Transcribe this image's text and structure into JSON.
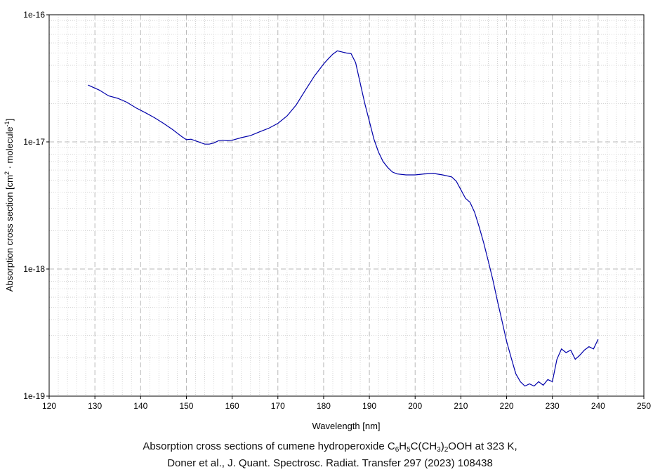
{
  "chart_data": {
    "type": "line",
    "xlabel": "Wavelength [nm]",
    "ylabel": "Absorption cross section [cm2 · molecule-1]",
    "ylabel_parts": {
      "main": "Absorption cross section [cm",
      "sup1": "2",
      "mid": " · molecule",
      "sup2": "-1",
      "end": "]"
    },
    "xlim": [
      120,
      250
    ],
    "ylim": [
      1e-19,
      1e-16
    ],
    "yscale": "log",
    "grid": true,
    "x_ticks": [
      "120",
      "130",
      "140",
      "150",
      "160",
      "170",
      "180",
      "190",
      "200",
      "210",
      "220",
      "230",
      "240",
      "250"
    ],
    "y_ticks": [
      "1e-19",
      "1e-18",
      "1e-17",
      "1e-16"
    ],
    "line_color": "#0000aa",
    "series": [
      {
        "x": [
          128.5,
          131,
          133,
          135,
          137,
          139,
          141,
          143,
          145,
          147,
          149,
          150,
          151,
          152,
          153,
          154,
          155,
          156,
          157,
          158,
          159,
          160,
          162,
          164,
          166,
          168,
          170,
          172,
          174,
          176,
          178,
          180,
          181,
          182,
          183,
          184,
          185,
          186,
          187,
          188,
          189,
          190,
          191,
          192,
          193,
          194,
          195,
          196,
          198,
          200,
          202,
          204,
          206,
          208,
          209,
          210,
          211,
          212,
          213,
          214,
          215,
          216,
          217,
          218,
          219,
          220,
          221,
          222,
          223,
          224,
          225,
          226,
          227,
          228,
          229,
          230,
          231,
          232,
          233,
          234,
          235,
          236,
          237,
          238,
          239,
          240
        ],
        "y": [
          2.8e-17,
          2.55e-17,
          2.3e-17,
          2.2e-17,
          2.05e-17,
          1.85e-17,
          1.7e-17,
          1.55e-17,
          1.4e-17,
          1.25e-17,
          1.1e-17,
          1.04e-17,
          1.05e-17,
          1.02e-17,
          9.9e-18,
          9.6e-18,
          9.6e-18,
          9.8e-18,
          1.02e-17,
          1.03e-17,
          1.02e-17,
          1.03e-17,
          1.08e-17,
          1.12e-17,
          1.2e-17,
          1.28e-17,
          1.4e-17,
          1.6e-17,
          1.95e-17,
          2.55e-17,
          3.3e-17,
          4.1e-17,
          4.5e-17,
          4.9e-17,
          5.2e-17,
          5.1e-17,
          5e-17,
          4.95e-17,
          4.2e-17,
          2.9e-17,
          2e-17,
          1.45e-17,
          1.05e-17,
          8.3e-18,
          7e-18,
          6.3e-18,
          5.8e-18,
          5.6e-18,
          5.5e-18,
          5.5e-18,
          5.6e-18,
          5.65e-18,
          5.5e-18,
          5.3e-18,
          4.9e-18,
          4.2e-18,
          3.6e-18,
          3.35e-18,
          2.8e-18,
          2.15e-18,
          1.6e-18,
          1.15e-18,
          8.2e-19,
          5.6e-19,
          3.9e-19,
          2.7e-19,
          2e-19,
          1.5e-19,
          1.3e-19,
          1.2e-19,
          1.25e-19,
          1.2e-19,
          1.3e-19,
          1.22e-19,
          1.35e-19,
          1.3e-19,
          1.95e-19,
          2.35e-19,
          2.2e-19,
          2.3e-19,
          1.95e-19,
          2.1e-19,
          2.3e-19,
          2.45e-19,
          2.35e-19,
          2.8e-19
        ]
      }
    ]
  },
  "caption": {
    "line1": {
      "pre": "Absorption cross sections of cumene hydroperoxide C",
      "s1": "6",
      "t1": "H",
      "s2": "5",
      "t2": "C(CH",
      "s3": "3",
      "t3": ")",
      "s4": "2",
      "post": "OOH at 323 K,"
    },
    "line2": "Doner et al., J. Quant. Spectrosc. Radiat. Transfer 297 (2023) 108438"
  }
}
